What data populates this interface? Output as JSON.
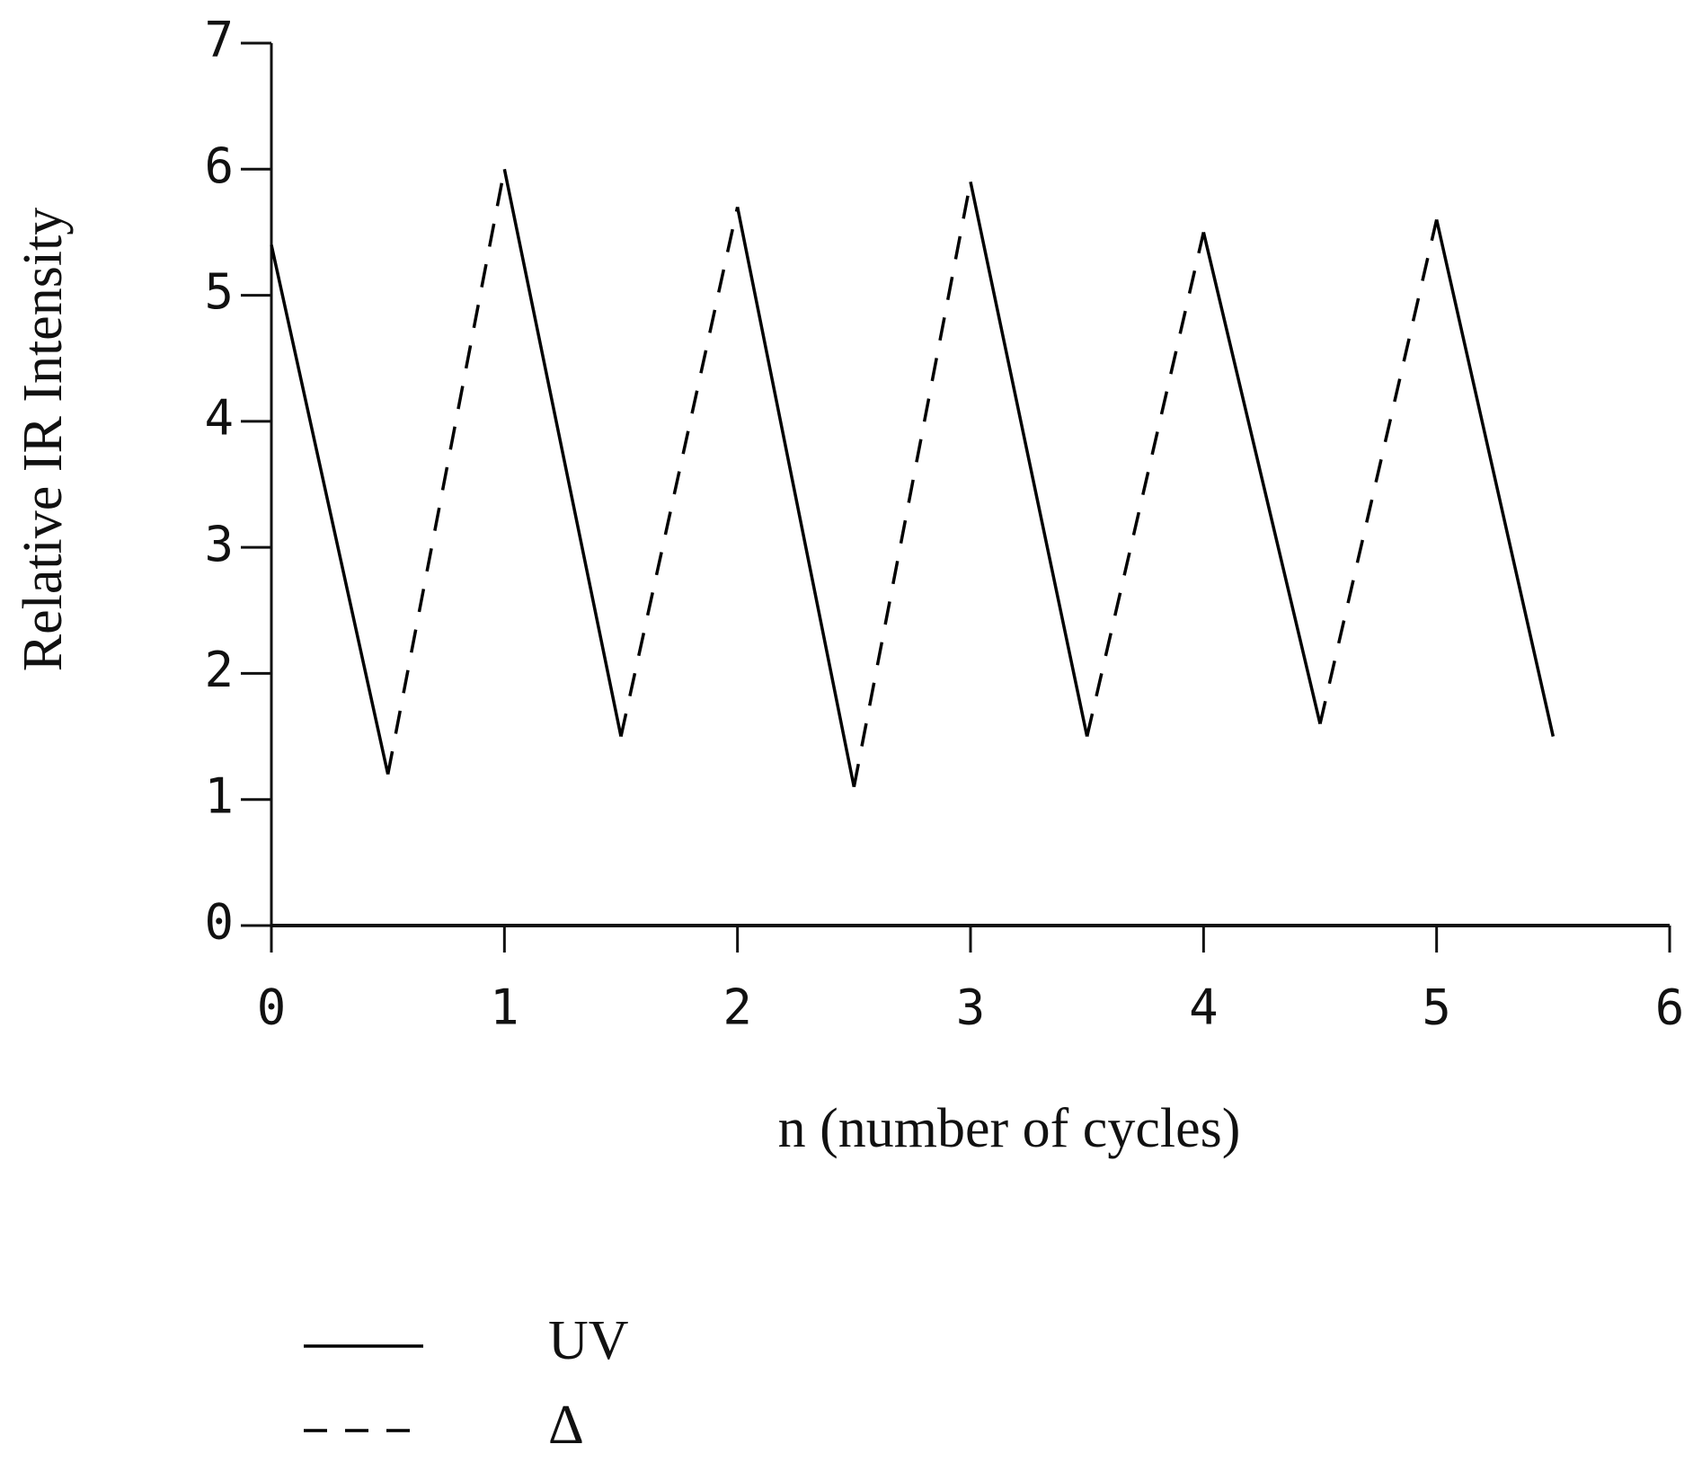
{
  "chart_data": {
    "type": "line",
    "x_label": "n (number of cycles)",
    "y_label": "Relative IR Intensity",
    "xlim": [
      0,
      6
    ],
    "xticks": [
      0,
      1,
      2,
      3,
      4,
      5,
      6
    ],
    "ylim": [
      0,
      7
    ],
    "yticks": [
      0,
      1,
      2,
      3,
      4,
      5,
      6,
      7
    ],
    "series": [
      {
        "name": "UV",
        "color": "#000000",
        "dash": "solid",
        "x": [
          0,
          0.5,
          null,
          1,
          1.5,
          null,
          2,
          2.5,
          null,
          3,
          3.5,
          null,
          4,
          4.5,
          null,
          5,
          5.5
        ],
        "values": [
          5.4,
          1.2,
          null,
          6.0,
          1.5,
          null,
          5.7,
          1.1,
          null,
          5.9,
          1.5,
          null,
          5.5,
          1.6,
          null,
          5.6,
          1.5
        ]
      },
      {
        "name": "Δ",
        "color": "#000000",
        "dash": "dashed",
        "x": [
          0.5,
          1,
          null,
          1.5,
          2,
          null,
          2.5,
          3,
          null,
          3.5,
          4,
          null,
          4.5,
          5
        ],
        "values": [
          1.2,
          6.0,
          null,
          1.5,
          5.7,
          null,
          1.1,
          5.9,
          null,
          1.5,
          5.5,
          null,
          1.6,
          5.6
        ]
      }
    ]
  }
}
